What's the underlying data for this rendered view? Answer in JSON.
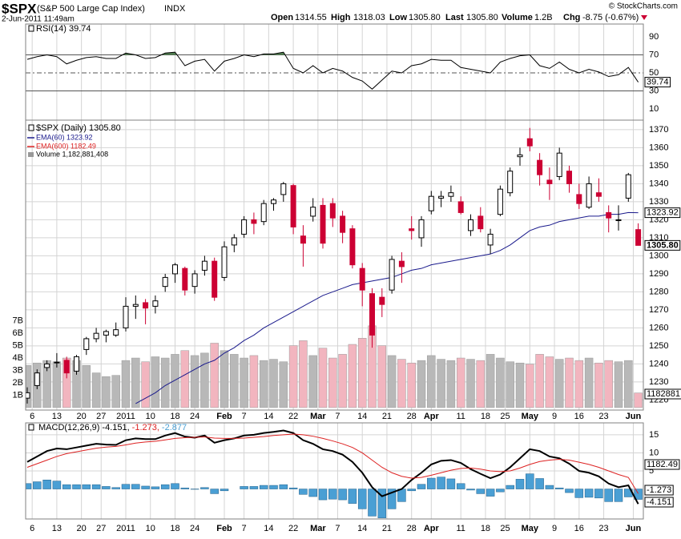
{
  "header": {
    "symbol": "$SPX",
    "name": "(S&P 500 Large Cap Index)",
    "exchange": "INDX",
    "datetime": "2-Jun-2011 11:49am",
    "copyright": "© StockCharts.com",
    "quote": [
      {
        "label": "Open",
        "value": "1314.55"
      },
      {
        "label": "High",
        "value": "1318.03"
      },
      {
        "label": "Low",
        "value": "1305.80"
      },
      {
        "label": "Last",
        "value": "1305.80"
      },
      {
        "label": "Volume",
        "value": "1.2B"
      },
      {
        "label": "Chg",
        "value": "-8.75 (-0.67%)"
      }
    ]
  },
  "chart_data": [
    {
      "type": "rsi",
      "legend": "RSI(14) 39.74",
      "color": "#000000",
      "fill_color": "#4f7f4f",
      "ylim": [
        -2.4,
        104.2
      ],
      "yticks": [
        10,
        30,
        50,
        70,
        90
      ],
      "levels": [
        30,
        50,
        70
      ],
      "last_label": "39.74",
      "x": [
        0,
        2,
        4,
        6,
        8,
        10,
        12,
        14,
        16,
        18,
        20,
        22,
        24,
        26,
        28,
        30,
        32,
        34,
        36,
        38,
        40,
        42,
        44,
        46,
        48,
        50,
        52,
        54,
        56,
        58,
        60,
        62,
        64,
        66,
        68,
        70,
        72,
        74,
        76,
        78,
        80,
        82,
        84,
        86,
        88,
        90,
        92,
        94,
        96,
        98,
        100,
        102,
        104,
        106,
        108,
        110,
        112,
        114,
        116,
        118,
        120,
        122,
        124
      ],
      "values": [
        65,
        68,
        70,
        68,
        60,
        64,
        67,
        68,
        66,
        66,
        72,
        70,
        66,
        67,
        72,
        73,
        58,
        63,
        65,
        52,
        63,
        66,
        70,
        68,
        71,
        71,
        73,
        55,
        50,
        58,
        50,
        55,
        52,
        45,
        41,
        32,
        42,
        52,
        50,
        58,
        60,
        65,
        64,
        64,
        56,
        54,
        52,
        50,
        62,
        66,
        69,
        70,
        58,
        55,
        62,
        54,
        50,
        54,
        51,
        46,
        48,
        56,
        39.74
      ]
    },
    {
      "type": "candlestick",
      "legend": "$SPX (Daily) 1305.80",
      "up_color": "#ffffff",
      "down_color": "#cc0033",
      "grid": true,
      "ylim": [
        1214.4,
        1375.3
      ],
      "yticks": [
        1220,
        1230,
        1240,
        1250,
        1260,
        1270,
        1280,
        1290,
        1300,
        1310,
        1320,
        1330,
        1340,
        1350,
        1360,
        1370
      ],
      "xticks": [
        {
          "value": 1,
          "label": "6"
        },
        {
          "value": 6,
          "label": "13"
        },
        {
          "value": 11,
          "label": "20"
        },
        {
          "value": 15,
          "label": "27"
        },
        {
          "value": 20,
          "label": "2011"
        },
        {
          "value": 25,
          "label": "10"
        },
        {
          "value": 30,
          "label": "18"
        },
        {
          "value": 34,
          "label": "24"
        },
        {
          "value": 40,
          "label": "Feb"
        },
        {
          "value": 44,
          "label": "7"
        },
        {
          "value": 49,
          "label": "14"
        },
        {
          "value": 54,
          "label": "22"
        },
        {
          "value": 59,
          "label": "Mar"
        },
        {
          "value": 63,
          "label": "7"
        },
        {
          "value": 68,
          "label": "14"
        },
        {
          "value": 73,
          "label": "21"
        },
        {
          "value": 78,
          "label": "28"
        },
        {
          "value": 82,
          "label": "Apr"
        },
        {
          "value": 88,
          "label": "11"
        },
        {
          "value": 93,
          "label": "18"
        },
        {
          "value": 97,
          "label": "25"
        },
        {
          "value": 102,
          "label": "May"
        },
        {
          "value": 107,
          "label": "9"
        },
        {
          "value": 112,
          "label": "16"
        },
        {
          "value": 117,
          "label": "23"
        },
        {
          "value": 123,
          "label": "Jun"
        }
      ],
      "x": [
        0,
        2,
        4,
        6,
        8,
        10,
        12,
        14,
        16,
        18,
        20,
        22,
        24,
        26,
        28,
        30,
        32,
        34,
        36,
        38,
        40,
        42,
        44,
        46,
        48,
        50,
        52,
        54,
        56,
        58,
        60,
        62,
        64,
        66,
        68,
        70,
        72,
        74,
        76,
        78,
        80,
        82,
        84,
        86,
        88,
        90,
        92,
        94,
        96,
        98,
        100,
        102,
        104,
        106,
        108,
        110,
        112,
        114,
        116,
        118,
        120,
        122,
        124
      ],
      "open": [
        1221,
        1228,
        1238,
        1241,
        1242,
        1236,
        1248,
        1254,
        1256,
        1256,
        1260,
        1272,
        1274,
        1272,
        1283,
        1290,
        1293,
        1283,
        1292,
        1297,
        1288,
        1306,
        1312,
        1320,
        1319,
        1329,
        1334,
        1339,
        1311,
        1322,
        1328,
        1329,
        1322,
        1315,
        1293,
        1279,
        1277,
        1281,
        1297,
        1315,
        1310,
        1325,
        1332,
        1333,
        1330,
        1314,
        1322,
        1306,
        1323,
        1335,
        1355,
        1365,
        1353,
        1342,
        1344,
        1347,
        1334,
        1327,
        1335,
        1324,
        1320,
        1332,
        1314.55
      ],
      "high": [
        1227,
        1237,
        1242,
        1246,
        1244,
        1245,
        1255,
        1260,
        1259,
        1263,
        1277,
        1278,
        1276,
        1278,
        1290,
        1296,
        1294,
        1292,
        1300,
        1299,
        1308,
        1312,
        1322,
        1324,
        1331,
        1332,
        1341,
        1340,
        1317,
        1332,
        1332,
        1332,
        1325,
        1317,
        1296,
        1282,
        1282,
        1300,
        1302,
        1322,
        1322,
        1336,
        1336,
        1339,
        1333,
        1323,
        1327,
        1315,
        1339,
        1349,
        1360,
        1371,
        1357,
        1349,
        1360,
        1350,
        1340,
        1344,
        1343,
        1328,
        1328,
        1346,
        1318.03
      ],
      "low": [
        1218,
        1226,
        1236,
        1238,
        1232,
        1234,
        1245,
        1252,
        1252,
        1255,
        1258,
        1265,
        1262,
        1268,
        1280,
        1285,
        1278,
        1279,
        1289,
        1275,
        1286,
        1302,
        1310,
        1312,
        1317,
        1325,
        1330,
        1312,
        1294,
        1319,
        1304,
        1316,
        1307,
        1293,
        1272,
        1249,
        1266,
        1279,
        1285,
        1309,
        1305,
        1323,
        1327,
        1330,
        1323,
        1311,
        1313,
        1301,
        1322,
        1333,
        1350,
        1358,
        1339,
        1331,
        1342,
        1335,
        1326,
        1326,
        1330,
        1313,
        1314,
        1330,
        1305.8
      ],
      "close": [
        1224,
        1235,
        1240,
        1241,
        1235,
        1244,
        1254,
        1257,
        1258,
        1259,
        1272,
        1273,
        1271,
        1275,
        1288,
        1295,
        1281,
        1290,
        1297,
        1277,
        1305,
        1310,
        1320,
        1318,
        1329,
        1331,
        1340,
        1316,
        1307,
        1327,
        1307,
        1321,
        1313,
        1295,
        1281,
        1256,
        1273,
        1298,
        1294,
        1314,
        1320,
        1333,
        1333,
        1335,
        1324,
        1320,
        1315,
        1312,
        1337,
        1347,
        1356,
        1361,
        1345,
        1340,
        1357,
        1340,
        1329,
        1340,
        1333,
        1321,
        1320,
        1345,
        1305.8
      ],
      "series": [
        {
          "name": "EMA(60) 1323.92",
          "color": "#1a1a8c",
          "last_label": "1323.92",
          "values": [
            null,
            null,
            null,
            null,
            null,
            null,
            null,
            null,
            null,
            null,
            null,
            1218,
            1221,
            1224,
            1228,
            1231,
            1234,
            1237,
            1240,
            1242,
            1246,
            1249,
            1253,
            1256,
            1260,
            1263,
            1266,
            1269,
            1272,
            1275,
            1278,
            1280,
            1282,
            1284,
            1285,
            1286,
            1287,
            1288,
            1290,
            1292,
            1293,
            1295,
            1296,
            1297,
            1298,
            1299,
            1300,
            1301,
            1303,
            1306,
            1310,
            1314,
            1316,
            1317,
            1319,
            1320,
            1321,
            1322,
            1322,
            1323,
            1323,
            1324,
            1323.92
          ]
        },
        {
          "name": "EMA(600) 1182.49",
          "color": "#dd2222"
        }
      ],
      "last_label": "1305.80",
      "volume": {
        "name": "Volume 1,182,881,408",
        "up_color": "#b8b8b8",
        "down_color": "#f2b5bf",
        "last_label": "1182881",
        "ylim": [
          -0.2,
          23.2
        ],
        "yticks": [
          {
            "value": 1,
            "label": "1B"
          },
          {
            "value": 2,
            "label": "2B"
          },
          {
            "value": 3,
            "label": "3B"
          },
          {
            "value": 4,
            "label": "4B"
          },
          {
            "value": 5,
            "label": "5B"
          },
          {
            "value": 6,
            "label": "6B"
          },
          {
            "value": 7,
            "label": "7B"
          }
        ],
        "values": [
          3.4,
          3.6,
          3.8,
          3.7,
          4.0,
          3.8,
          3.4,
          2.8,
          2.5,
          2.6,
          3.8,
          4.0,
          3.7,
          4.1,
          4.0,
          4.3,
          4.6,
          4.2,
          4.4,
          5.2,
          4.6,
          4.3,
          4.0,
          4.2,
          3.8,
          3.9,
          3.7,
          5.0,
          5.4,
          4.2,
          4.8,
          4.0,
          4.3,
          5.1,
          5.6,
          6.6,
          5.0,
          4.2,
          3.9,
          3.6,
          3.8,
          4.2,
          3.9,
          3.8,
          4.0,
          3.9,
          3.8,
          4.3,
          4.0,
          3.7,
          3.6,
          3.5,
          4.3,
          4.1,
          3.9,
          4.0,
          3.8,
          4.0,
          3.6,
          3.8,
          3.7,
          3.8,
          1.182881408
        ]
      }
    },
    {
      "type": "macd",
      "legend": "MACD(12,26,9)",
      "grid": true,
      "ylim": [
        -8.3,
        18.3
      ],
      "yticks": [
        5,
        10,
        15
      ],
      "xticks": [
        {
          "value": 1,
          "label": "6"
        },
        {
          "value": 6,
          "label": "13"
        },
        {
          "value": 11,
          "label": "20"
        },
        {
          "value": 15,
          "label": "27"
        },
        {
          "value": 20,
          "label": "2011"
        },
        {
          "value": 25,
          "label": "10"
        },
        {
          "value": 30,
          "label": "18"
        },
        {
          "value": 34,
          "label": "24"
        },
        {
          "value": 40,
          "label": "Feb"
        },
        {
          "value": 44,
          "label": "7"
        },
        {
          "value": 49,
          "label": "14"
        },
        {
          "value": 54,
          "label": "22"
        },
        {
          "value": 59,
          "label": "Mar"
        },
        {
          "value": 63,
          "label": "7"
        },
        {
          "value": 68,
          "label": "14"
        },
        {
          "value": 73,
          "label": "21"
        },
        {
          "value": 78,
          "label": "28"
        },
        {
          "value": 82,
          "label": "Apr"
        },
        {
          "value": 88,
          "label": "11"
        },
        {
          "value": 93,
          "label": "18"
        },
        {
          "value": 97,
          "label": "25"
        },
        {
          "value": 102,
          "label": "May"
        },
        {
          "value": 107,
          "label": "9"
        },
        {
          "value": 112,
          "label": "16"
        },
        {
          "value": 117,
          "label": "23"
        },
        {
          "value": 123,
          "label": "Jun"
        }
      ],
      "right_labels": [
        "1182.49",
        "-1.273",
        "-4.151"
      ],
      "x": [
        0,
        2,
        4,
        6,
        8,
        10,
        12,
        14,
        16,
        18,
        20,
        22,
        24,
        26,
        28,
        30,
        32,
        34,
        36,
        38,
        40,
        42,
        44,
        46,
        48,
        50,
        52,
        54,
        56,
        58,
        60,
        62,
        64,
        66,
        68,
        70,
        72,
        74,
        76,
        78,
        80,
        82,
        84,
        86,
        88,
        90,
        92,
        94,
        96,
        98,
        100,
        102,
        104,
        106,
        108,
        110,
        112,
        114,
        116,
        118,
        120,
        122,
        124
      ],
      "series": [
        {
          "name": "-4.151,",
          "color": "#000000",
          "values": [
            7.5,
            9.0,
            10.5,
            11.2,
            11.0,
            11.5,
            12.0,
            12.5,
            12.3,
            12.2,
            13.5,
            14.0,
            13.8,
            13.8,
            14.8,
            15.5,
            14.5,
            14.2,
            14.8,
            12.8,
            13.5,
            14.0,
            14.8,
            15.0,
            15.5,
            15.8,
            16.2,
            15.5,
            13.5,
            12.5,
            11.0,
            10.5,
            9.5,
            7.5,
            4.5,
            0.5,
            -2.0,
            -1.0,
            0.0,
            2.5,
            4.5,
            6.8,
            7.8,
            8.0,
            7.2,
            5.5,
            4.2,
            3.0,
            4.0,
            6.0,
            8.5,
            11.0,
            10.5,
            9.0,
            8.5,
            7.0,
            5.0,
            4.5,
            3.5,
            1.5,
            0.5,
            1.0,
            -4.151
          ]
        },
        {
          "name": "-1.273,",
          "color": "#dd2222",
          "values": [
            6.0,
            7.0,
            8.0,
            9.0,
            9.8,
            10.3,
            10.8,
            11.3,
            11.6,
            11.8,
            12.2,
            12.7,
            13.0,
            13.2,
            13.6,
            14.0,
            14.2,
            14.3,
            14.4,
            14.1,
            14.0,
            14.0,
            14.1,
            14.3,
            14.5,
            14.8,
            15.0,
            15.2,
            15.0,
            14.6,
            14.0,
            13.3,
            12.5,
            11.5,
            10.0,
            8.0,
            6.0,
            4.5,
            3.5,
            3.0,
            3.2,
            3.8,
            4.5,
            5.2,
            5.7,
            5.8,
            5.5,
            5.0,
            4.8,
            5.0,
            5.8,
            6.8,
            7.6,
            8.0,
            8.2,
            8.0,
            7.4,
            6.8,
            6.0,
            5.0,
            4.0,
            3.2,
            -1.273
          ]
        },
        {
          "name": "-2.877",
          "color": "#4a9fd4",
          "type": "histogram",
          "values": [
            1.5,
            2.0,
            2.5,
            2.2,
            1.2,
            1.2,
            1.2,
            1.2,
            0.7,
            0.4,
            1.3,
            1.3,
            0.8,
            0.6,
            1.2,
            1.5,
            0.3,
            -0.1,
            0.4,
            -1.3,
            -0.5,
            0,
            0.7,
            0.7,
            1.0,
            1.0,
            1.2,
            0.3,
            -1.5,
            -2.1,
            -3.0,
            -2.8,
            -3.0,
            -4.0,
            -5.5,
            -7.5,
            -8.0,
            -5.5,
            -3.5,
            -0.5,
            1.3,
            3.0,
            3.3,
            2.8,
            1.5,
            -0.3,
            -1.3,
            -2.0,
            -0.8,
            1.0,
            2.7,
            4.2,
            2.9,
            1.0,
            0.3,
            -1.0,
            -2.4,
            -2.3,
            -2.5,
            -3.5,
            -3.5,
            -2.2,
            -2.877
          ]
        }
      ]
    }
  ]
}
